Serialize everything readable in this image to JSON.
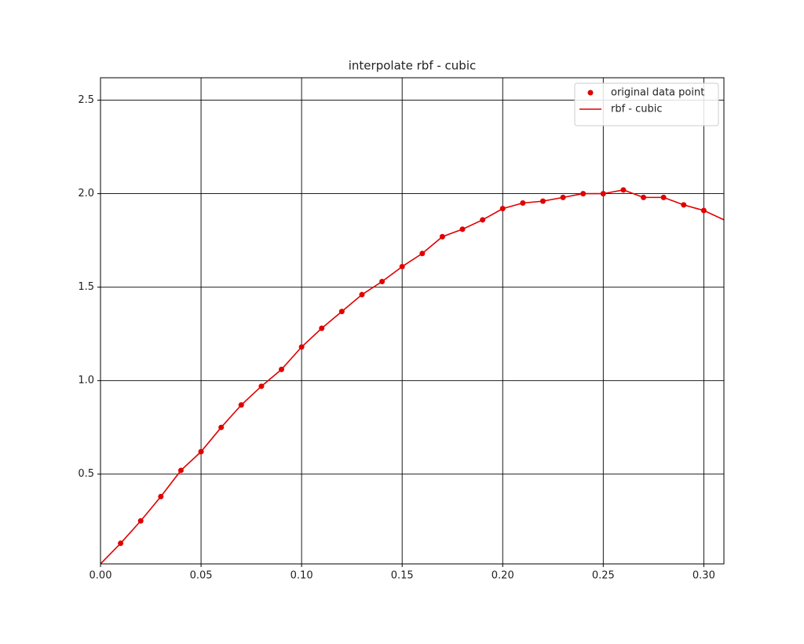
{
  "chart_data": {
    "type": "line",
    "title": "interpolate rbf - cubic",
    "xlim": [
      0,
      0.31
    ],
    "ylim": [
      0.02,
      2.62
    ],
    "xticks": [
      {
        "value": 0,
        "label": "0.00"
      },
      {
        "value": 0.05,
        "label": "0.05"
      },
      {
        "value": 0.1,
        "label": "0.10"
      },
      {
        "value": 0.15,
        "label": "0.15"
      },
      {
        "value": 0.2,
        "label": "0.20"
      },
      {
        "value": 0.25,
        "label": "0.25"
      },
      {
        "value": 0.3,
        "label": "0.30"
      }
    ],
    "yticks": [
      0.5,
      {
        "value": 1,
        "label": "1.0"
      },
      1.5,
      {
        "value": 2,
        "label": "2.0"
      },
      2.5
    ],
    "grid": true,
    "legend": "upper right",
    "series": [
      {
        "name": "original data point",
        "type": "scatter",
        "color": "#e00000",
        "x": [
          0.01,
          0.02,
          0.03,
          0.04,
          0.05,
          0.06,
          0.07,
          0.08,
          0.09,
          0.1,
          0.11,
          0.12,
          0.13,
          0.14,
          0.15,
          0.16,
          0.17,
          0.18,
          0.19,
          0.2,
          0.21,
          0.22,
          0.23,
          0.24,
          0.25,
          0.26,
          0.27,
          0.28,
          0.29,
          0.3
        ],
        "values": [
          0.13,
          0.25,
          0.38,
          0.52,
          0.62,
          0.75,
          0.87,
          0.97,
          1.06,
          1.18,
          1.28,
          1.37,
          1.46,
          1.53,
          1.61,
          1.68,
          1.77,
          1.81,
          1.86,
          1.92,
          1.95,
          1.96,
          1.98,
          2.0,
          2.0,
          2.02,
          1.98,
          1.98,
          1.94,
          1.91
        ]
      },
      {
        "name": "rbf - cubic",
        "type": "line",
        "color": "#e00000",
        "x": [
          0,
          0.01,
          0.02,
          0.03,
          0.04,
          0.05,
          0.06,
          0.07,
          0.08,
          0.09,
          0.1,
          0.11,
          0.12,
          0.13,
          0.14,
          0.15,
          0.16,
          0.17,
          0.18,
          0.19,
          0.2,
          0.21,
          0.22,
          0.23,
          0.24,
          0.25,
          0.26,
          0.27,
          0.28,
          0.29,
          0.3,
          0.31
        ],
        "values": [
          0.02,
          0.13,
          0.25,
          0.38,
          0.52,
          0.62,
          0.75,
          0.87,
          0.97,
          1.06,
          1.18,
          1.28,
          1.37,
          1.46,
          1.53,
          1.61,
          1.68,
          1.77,
          1.81,
          1.86,
          1.92,
          1.95,
          1.96,
          1.98,
          2.0,
          2.0,
          2.02,
          1.98,
          1.98,
          1.94,
          1.91,
          1.86
        ]
      }
    ]
  }
}
